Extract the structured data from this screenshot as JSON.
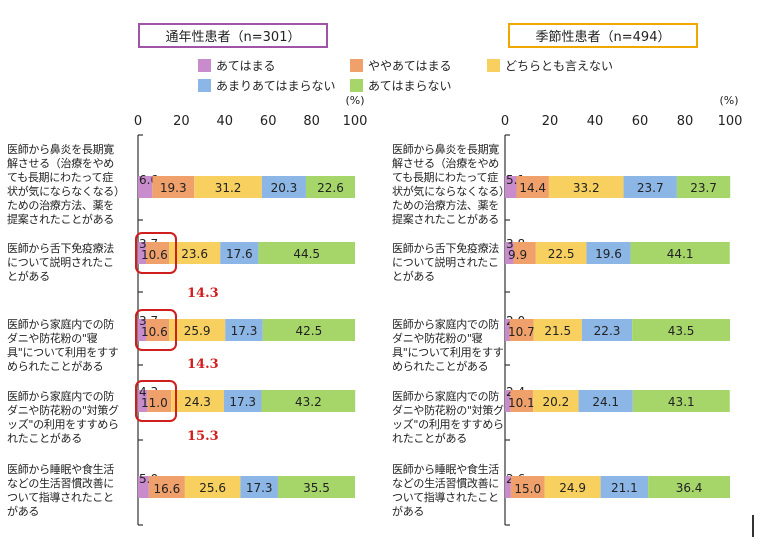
{
  "legend": [
    {
      "label": "あてはまる",
      "color": "#c88ccc"
    },
    {
      "label": "ややあてはまる",
      "color": "#f0a06a"
    },
    {
      "label": "どちらとも言えない",
      "color": "#f8d060"
    },
    {
      "label": "あまりあてはまらない",
      "color": "#8cb6e6"
    },
    {
      "label": "あてはまらない",
      "color": "#a6d66a"
    }
  ],
  "row_labels": [
    "医師から鼻炎を長期寛解させる（治療をやめても長期にわたって症状が気にならなくなる）ための治療方法、薬を提案されたことがある",
    "医師から舌下免疫療法について説明されたことがある",
    "医師から家庭内での防ダニや防花粉の\"寝具\"について利用をすすめられたことがある",
    "医師から家庭内での防ダニや防花粉の\"対策グッズ\"の利用をすすめられたことがある",
    "医師から睡眠や食生活などの生活習慣改善について指導されたことがある"
  ],
  "chart_data": [
    {
      "type": "bar",
      "title": "通年性患者（n=301）",
      "title_box_color": "#a054a8",
      "xlabel": "(%)",
      "xlim": [
        0,
        100
      ],
      "xticks": [
        0,
        20,
        40,
        60,
        80,
        100
      ],
      "series": [
        {
          "name": "あてはまる",
          "values": [
            6.6,
            3.7,
            3.7,
            4.3,
            5.0
          ]
        },
        {
          "name": "ややあてはまる",
          "values": [
            19.3,
            10.6,
            10.6,
            11.0,
            16.6
          ]
        },
        {
          "name": "どちらとも言えない",
          "values": [
            31.2,
            23.6,
            25.9,
            24.3,
            25.6
          ]
        },
        {
          "name": "あまりあてはまらない",
          "values": [
            20.3,
            17.6,
            17.3,
            17.3,
            17.3
          ]
        },
        {
          "name": "あてはまらない",
          "values": [
            22.6,
            44.5,
            42.5,
            43.2,
            35.5
          ]
        }
      ],
      "annotations": [
        {
          "row": 1,
          "text": "14.3"
        },
        {
          "row": 2,
          "text": "14.3"
        },
        {
          "row": 3,
          "text": "15.3"
        }
      ]
    },
    {
      "type": "bar",
      "title": "季節性患者（n=494）",
      "title_box_color": "#f0a800",
      "xlabel": "(%)",
      "xlim": [
        0,
        100
      ],
      "xticks": [
        0,
        20,
        40,
        60,
        80,
        100
      ],
      "series": [
        {
          "name": "あてはまる",
          "values": [
            5.1,
            3.8,
            2.0,
            2.4,
            2.6
          ]
        },
        {
          "name": "ややあてはまる",
          "values": [
            14.4,
            9.9,
            10.7,
            10.1,
            15.0
          ]
        },
        {
          "name": "どちらとも言えない",
          "values": [
            33.2,
            22.5,
            21.5,
            20.2,
            24.9
          ]
        },
        {
          "name": "あまりあてはまらない",
          "values": [
            23.7,
            19.6,
            22.3,
            24.1,
            21.1
          ]
        },
        {
          "name": "あてはまらない",
          "values": [
            23.7,
            44.1,
            43.5,
            43.1,
            36.4
          ]
        }
      ],
      "annotations": []
    }
  ]
}
